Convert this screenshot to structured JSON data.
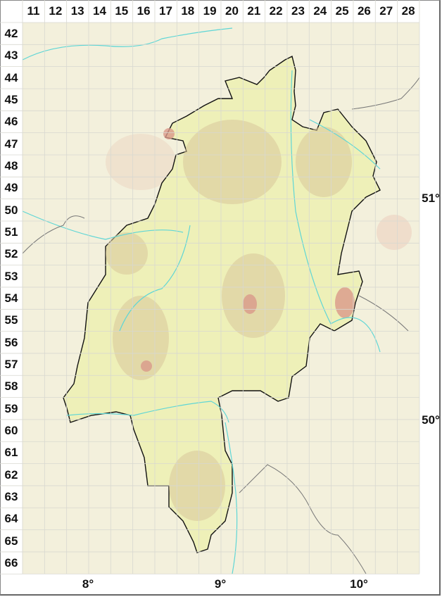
{
  "map": {
    "columns": [
      "11",
      "12",
      "13",
      "14",
      "15",
      "16",
      "17",
      "18",
      "19",
      "20",
      "21",
      "22",
      "23",
      "24",
      "25",
      "26",
      "27",
      "28"
    ],
    "rows": [
      "42",
      "43",
      "44",
      "45",
      "46",
      "47",
      "48",
      "49",
      "50",
      "51",
      "52",
      "53",
      "54",
      "55",
      "56",
      "57",
      "58",
      "59",
      "60",
      "61",
      "62",
      "63",
      "64",
      "65",
      "66"
    ],
    "longitude_labels": [
      "8°",
      "9°",
      "10°"
    ],
    "latitude_labels": [
      "51°",
      "50°"
    ],
    "colors": {
      "background": "#f3f0dc",
      "region_fill": "#eef0b8",
      "highland": "#d9c79a",
      "peaks": "#d9988a",
      "rivers": "#5fd6d6",
      "border": "#111111",
      "outer_borders": "#777777",
      "grid": "#d8d8d0"
    }
  }
}
